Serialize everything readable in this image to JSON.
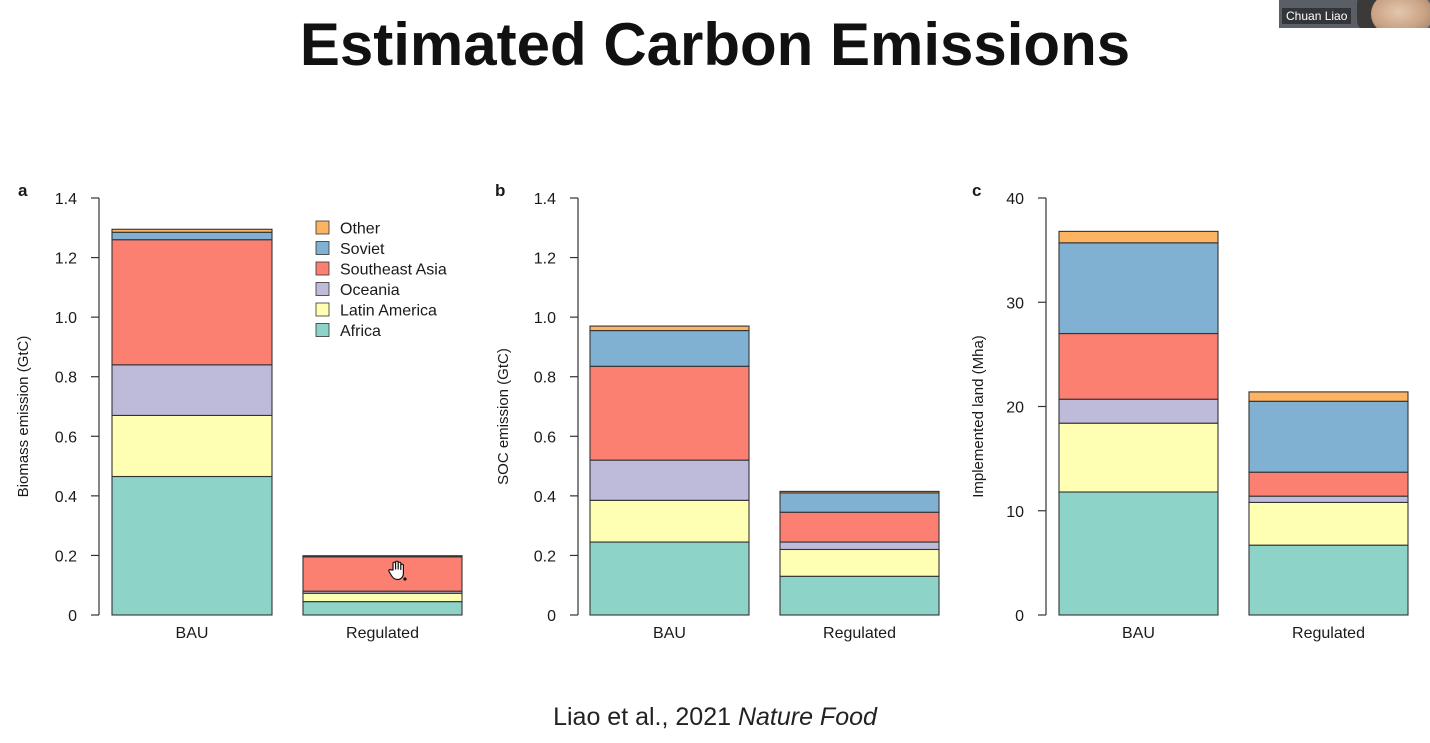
{
  "slide": {
    "title": "Estimated Carbon Emissions",
    "citation_authors": "Liao et al., 2021 ",
    "citation_journal": "Nature Food"
  },
  "video_tile": {
    "participant_name": "Chuan Liao"
  },
  "colors": {
    "Africa": "#8ed3c7",
    "Latin America": "#ffffb3",
    "Oceania": "#bebada",
    "Southeast Asia": "#fb8072",
    "Soviet": "#80b1d3",
    "Other": "#fdb462"
  },
  "legend": [
    "Other",
    "Soviet",
    "Southeast Asia",
    "Oceania",
    "Latin America",
    "Africa"
  ],
  "chart_data": [
    {
      "panel": "a",
      "type": "bar",
      "stacked": true,
      "ylabel": "Biomass emission (GtC)",
      "ylim": [
        0,
        1.4
      ],
      "yticks": [
        0,
        0.2,
        0.4,
        0.6,
        0.8,
        1.0,
        1.2,
        1.4
      ],
      "ytick_labels": [
        "0",
        "0.2",
        "0.4",
        "0.6",
        "0.8",
        "1.0",
        "1.2",
        "1.4"
      ],
      "categories": [
        "BAU",
        "Regulated"
      ],
      "series": [
        {
          "name": "Africa",
          "values": [
            0.465,
            0.045
          ]
        },
        {
          "name": "Latin America",
          "values": [
            0.205,
            0.028
          ]
        },
        {
          "name": "Oceania",
          "values": [
            0.17,
            0.007
          ]
        },
        {
          "name": "Southeast Asia",
          "values": [
            0.42,
            0.115
          ]
        },
        {
          "name": "Soviet",
          "values": [
            0.025,
            0.002
          ]
        },
        {
          "name": "Other",
          "values": [
            0.01,
            0.002
          ]
        }
      ]
    },
    {
      "panel": "b",
      "type": "bar",
      "stacked": true,
      "ylabel": "SOC emission (GtC)",
      "ylim": [
        0,
        1.4
      ],
      "yticks": [
        0,
        0.2,
        0.4,
        0.6,
        0.8,
        1.0,
        1.2,
        1.4
      ],
      "ytick_labels": [
        "0",
        "0.2",
        "0.4",
        "0.6",
        "0.8",
        "1.0",
        "1.2",
        "1.4"
      ],
      "categories": [
        "BAU",
        "Regulated"
      ],
      "series": [
        {
          "name": "Africa",
          "values": [
            0.245,
            0.13
          ]
        },
        {
          "name": "Latin America",
          "values": [
            0.14,
            0.09
          ]
        },
        {
          "name": "Oceania",
          "values": [
            0.135,
            0.025
          ]
        },
        {
          "name": "Southeast Asia",
          "values": [
            0.315,
            0.1
          ]
        },
        {
          "name": "Soviet",
          "values": [
            0.12,
            0.065
          ]
        },
        {
          "name": "Other",
          "values": [
            0.015,
            0.005
          ]
        }
      ]
    },
    {
      "panel": "c",
      "type": "bar",
      "stacked": true,
      "ylabel": "Implemented land (Mha)",
      "ylim": [
        0,
        40
      ],
      "yticks": [
        0,
        10,
        20,
        30,
        40
      ],
      "ytick_labels": [
        "0",
        "10",
        "20",
        "30",
        "40"
      ],
      "categories": [
        "BAU",
        "Regulated"
      ],
      "series": [
        {
          "name": "Africa",
          "values": [
            11.8,
            6.7
          ]
        },
        {
          "name": "Latin America",
          "values": [
            6.6,
            4.1
          ]
        },
        {
          "name": "Oceania",
          "values": [
            2.3,
            0.6
          ]
        },
        {
          "name": "Southeast Asia",
          "values": [
            6.3,
            2.3
          ]
        },
        {
          "name": "Soviet",
          "values": [
            8.7,
            6.8
          ]
        },
        {
          "name": "Other",
          "values": [
            1.1,
            0.9
          ]
        }
      ]
    }
  ]
}
